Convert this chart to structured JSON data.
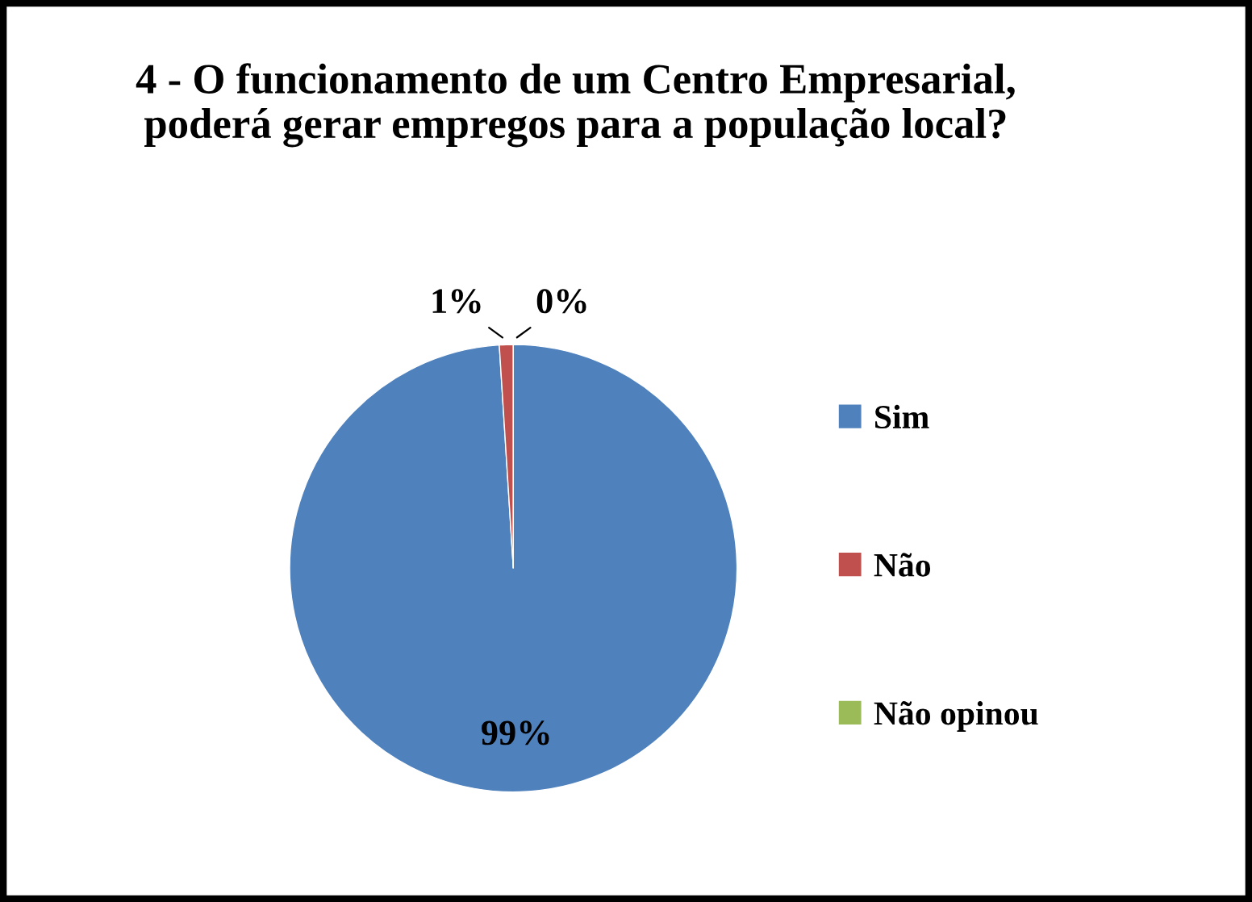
{
  "chart_data": {
    "type": "pie",
    "title": "4 - O funcionamento de um Centro Empresarial,\npoderá gerar empregos para a população local?",
    "categories": [
      "Sim",
      "Não",
      "Não opinou"
    ],
    "values": [
      99,
      1,
      0
    ],
    "colors": [
      "#4f81bd",
      "#c0504d",
      "#9bbb59"
    ],
    "value_labels": [
      "99%",
      "1%",
      "0%"
    ],
    "legend": "right"
  }
}
